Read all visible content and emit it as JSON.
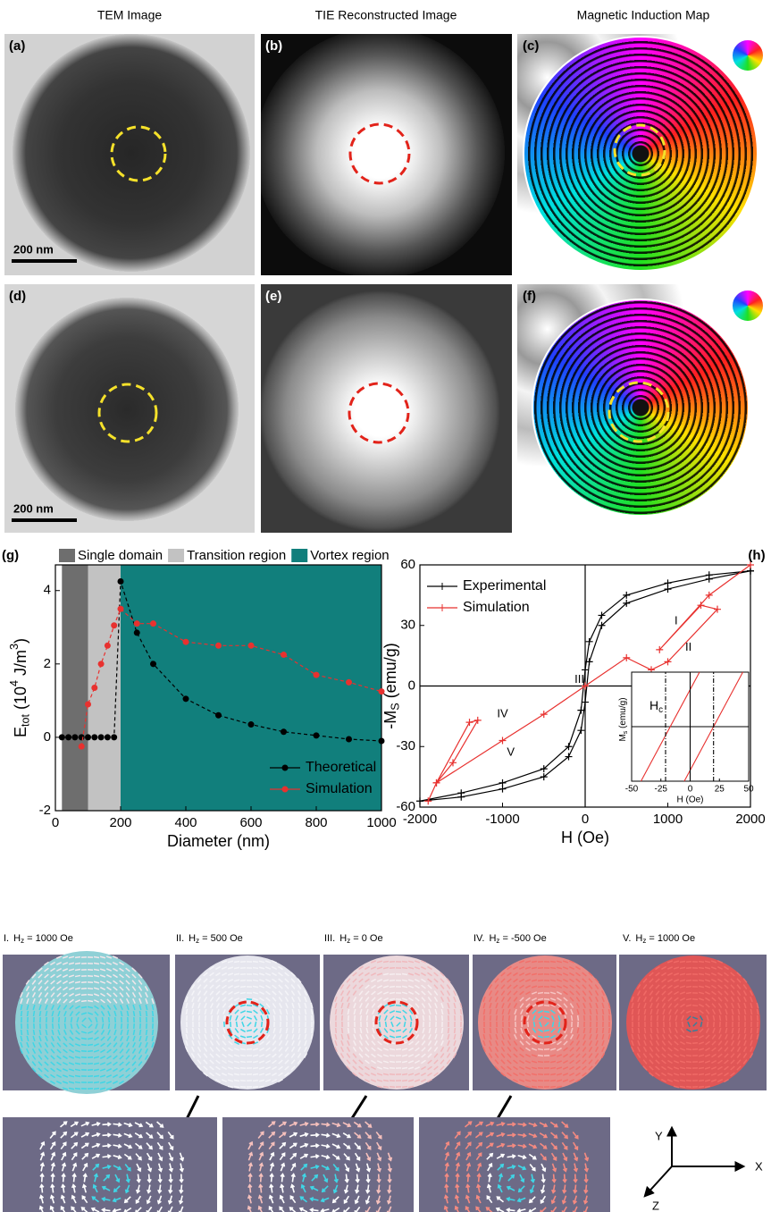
{
  "column_headers": [
    "TEM Image",
    "TIE Reconstructed Image",
    "Magnetic Induction Map"
  ],
  "panels": [
    "(a)",
    "(b)",
    "(c)",
    "(d)",
    "(e)",
    "(f)"
  ],
  "scale_bars": [
    "200 nm",
    "200 nm"
  ],
  "chart_data": [
    {
      "type": "line",
      "panel_label": "(g)",
      "regions": [
        {
          "name": "Single domain",
          "color": "#6e6e6e",
          "range": [
            20,
            100
          ]
        },
        {
          "name": "Transition region",
          "color": "#c2c2c2",
          "range": [
            100,
            200
          ]
        },
        {
          "name": "Vortex region",
          "color": "#117f7c",
          "range": [
            200,
            1000
          ]
        }
      ],
      "x_label": "Diameter (nm)",
      "y_label": [
        {
          "text": "E"
        },
        {
          "text": "tot",
          "script": "sub"
        },
        {
          "text": " (10"
        },
        {
          "text": "4",
          "script": "sup"
        },
        {
          "text": " J/m"
        },
        {
          "text": "3",
          "script": "sup"
        },
        {
          "text": ")"
        }
      ],
      "xlim": [
        0,
        1000
      ],
      "xticks": [
        0,
        200,
        400,
        600,
        800,
        1000
      ],
      "ylim": [
        -2,
        4.7
      ],
      "yticks": [
        -2,
        0,
        2,
        4
      ],
      "legend": "lower right",
      "series": [
        {
          "name": "Theoretical",
          "color": "#000000",
          "marker": "circle",
          "dash": true,
          "x": [
            20,
            40,
            60,
            80,
            100,
            120,
            140,
            160,
            180,
            200,
            250,
            300,
            400,
            500,
            600,
            700,
            800,
            900,
            1000
          ],
          "values": [
            0,
            0,
            0,
            0,
            0,
            0,
            0,
            0,
            0,
            4.25,
            2.85,
            2.0,
            1.05,
            0.6,
            0.35,
            0.15,
            0.05,
            -0.05,
            -0.1
          ]
        },
        {
          "name": "Simulation",
          "color": "#e8312f",
          "marker": "circle",
          "dash": true,
          "x": [
            80,
            100,
            120,
            140,
            160,
            180,
            200,
            250,
            300,
            400,
            500,
            600,
            700,
            800,
            900,
            1000
          ],
          "values": [
            -0.25,
            0.9,
            1.35,
            2.0,
            2.5,
            3.05,
            3.5,
            3.1,
            3.1,
            2.6,
            2.5,
            2.5,
            2.25,
            1.7,
            1.5,
            1.25
          ]
        }
      ]
    },
    {
      "type": "line",
      "panel_label": "(h)",
      "x_label": "H (Oe)",
      "y_label": [
        {
          "text": "-M"
        },
        {
          "text": "S",
          "script": "sub"
        },
        {
          "text": " (emu/g)"
        }
      ],
      "xlim": [
        -2000,
        2000
      ],
      "xticks": [
        -2000,
        -1000,
        0,
        1000,
        2000
      ],
      "ylim": [
        -60,
        60
      ],
      "yticks": [
        -60,
        -30,
        0,
        30,
        60
      ],
      "zero_axes": true,
      "legend": "upper left",
      "series": [
        {
          "name": "Experimental",
          "color": "#000000",
          "marker": "plus",
          "x": [
            2000,
            1500,
            1000,
            500,
            200,
            50,
            0,
            -50,
            -200,
            -500,
            -1000,
            -1500,
            -2000,
            -1500,
            -1000,
            -500,
            -200,
            -50,
            0,
            50,
            200,
            500,
            1000,
            1500,
            2000
          ],
          "values": [
            57,
            55,
            51,
            45,
            35,
            22,
            8,
            -12,
            -30,
            -41,
            -48,
            -53,
            -57,
            -55,
            -51,
            -45,
            -35,
            -22,
            -8,
            12,
            30,
            41,
            48,
            53,
            57
          ]
        },
        {
          "name": "Simulation",
          "color": "#e8312f",
          "marker": "plus",
          "x": [
            -1900,
            -1800,
            -1400,
            -1300,
            -1600,
            -1800,
            -1000,
            -500,
            0,
            500,
            800,
            1000,
            1600,
            1400,
            900,
            1500,
            2000
          ],
          "values": [
            -57,
            -48,
            -18,
            -17,
            -38,
            -48,
            -27,
            -14,
            0,
            14,
            8,
            12,
            38,
            40,
            18,
            45,
            60
          ]
        }
      ],
      "annotations": [
        "I",
        "II",
        "III",
        "IV",
        "V"
      ],
      "inset": {
        "x_label": "H (Oe)",
        "y_label": [
          {
            "text": "M"
          },
          {
            "text": "s",
            "script": "sub"
          },
          {
            "text": " (emu/g)"
          }
        ],
        "label": [
          {
            "text": "H"
          },
          {
            "text": "c",
            "script": "sub"
          }
        ],
        "xlim": [
          -50,
          50
        ],
        "xticks": [
          -50,
          -25,
          0,
          25,
          50
        ],
        "lines": [
          {
            "color": "#e8312f",
            "x": [
              -42,
              8
            ]
          },
          {
            "color": "#e8312f",
            "x": [
              -5,
              45
            ]
          },
          {
            "color": "#000000",
            "x": [
              -21,
              -21
            ],
            "dash": true
          },
          {
            "color": "#000000",
            "x": [
              0,
              0
            ]
          },
          {
            "color": "#000000",
            "x": [
              20,
              20
            ],
            "dash": true
          }
        ]
      }
    }
  ],
  "simulations": [
    {
      "numeral": "I.",
      "symbol": "H",
      "sub": "z",
      "field": " = 1000 Oe"
    },
    {
      "numeral": "II.",
      "symbol": "H",
      "sub": "z",
      "field": " = 500 Oe"
    },
    {
      "numeral": "III.",
      "symbol": "H",
      "sub": "z",
      "field": " = 0 Oe"
    },
    {
      "numeral": "IV.",
      "symbol": "H",
      "sub": "z",
      "field": " = -500 Oe"
    },
    {
      "numeral": "V.",
      "symbol": "H",
      "sub": "z",
      "field": " = 1000 Oe"
    }
  ],
  "axes_triad": {
    "x": "X",
    "y": "Y",
    "z": "Z"
  }
}
